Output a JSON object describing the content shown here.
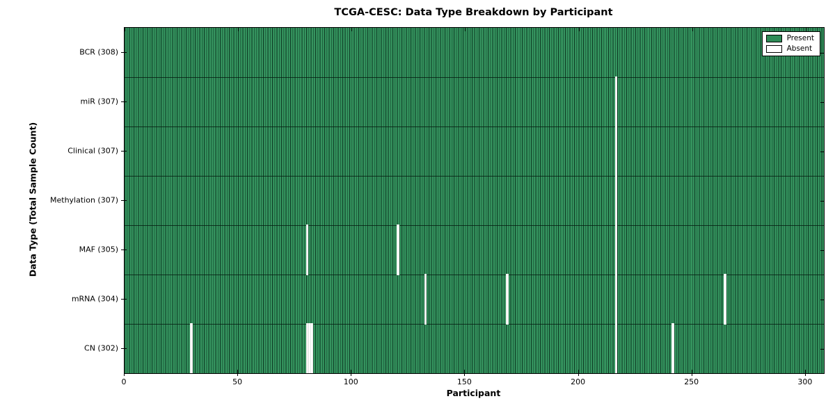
{
  "title": "TCGA-CESC: Data Type Breakdown by Participant",
  "colors": {
    "present": "#2e8b57",
    "present_edge": "#1d5c3a",
    "absent": "#ffffff",
    "axis": "#000000"
  },
  "legend": {
    "present_label": "Present",
    "absent_label": "Absent",
    "position": "upper right"
  },
  "chart_data": {
    "type": "heatmap",
    "title": "TCGA-CESC: Data Type Breakdown by Participant",
    "xlabel": "Participant",
    "ylabel": "Data Type (Total Sample Count)",
    "x_ticks": [
      0,
      50,
      100,
      150,
      200,
      250,
      300
    ],
    "xlim": [
      0,
      308
    ],
    "total_participants": 308,
    "grid": "row-boundaries-only",
    "legend_entries": [
      "Present",
      "Absent"
    ],
    "legend_position": "upper right",
    "rows": [
      {
        "label": "BCR (308)",
        "data_type": "BCR",
        "present_count": 308,
        "absent_participants": []
      },
      {
        "label": "miR (307)",
        "data_type": "miR",
        "present_count": 307,
        "absent_participants": [
          216
        ]
      },
      {
        "label": "Clinical (307)",
        "data_type": "Clinical",
        "present_count": 307,
        "absent_participants": [
          216
        ]
      },
      {
        "label": "Methylation (307)",
        "data_type": "Methylation",
        "present_count": 307,
        "absent_participants": [
          216
        ]
      },
      {
        "label": "MAF (305)",
        "data_type": "MAF",
        "present_count": 305,
        "absent_participants": [
          80,
          120,
          216
        ]
      },
      {
        "label": "mRNA (304)",
        "data_type": "mRNA",
        "present_count": 304,
        "absent_participants": [
          132,
          168,
          216,
          264
        ]
      },
      {
        "label": "CN (302)",
        "data_type": "CN",
        "present_count": 302,
        "absent_participants": [
          29,
          80,
          81,
          82,
          216,
          241
        ]
      }
    ]
  }
}
